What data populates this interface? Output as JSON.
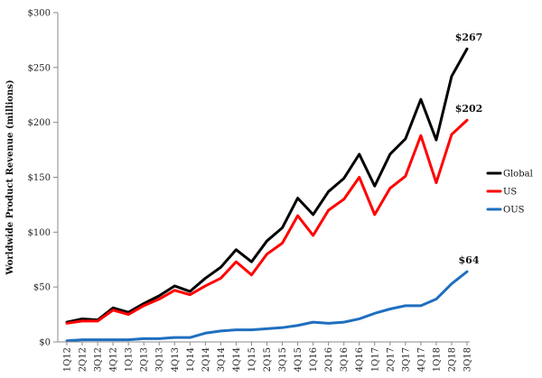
{
  "chart_data": {
    "type": "line",
    "title": "",
    "xlabel": "",
    "ylabel": "Worldwide Product Revenue (millions)",
    "ylim": [
      0,
      300
    ],
    "y_ticks": [
      0,
      50,
      100,
      150,
      200,
      250,
      300
    ],
    "y_tick_labels": [
      "$0",
      "$50",
      "$100",
      "$150",
      "$200",
      "$250",
      "$300"
    ],
    "grid": false,
    "legend_position": "right",
    "categories": [
      "1Q12",
      "2Q12",
      "3Q12",
      "4Q12",
      "1Q13",
      "2Q13",
      "3Q13",
      "4Q13",
      "1Q14",
      "2Q14",
      "3Q14",
      "4Q14",
      "1Q15",
      "2Q15",
      "3Q15",
      "4Q15",
      "1Q16",
      "2Q16",
      "3Q16",
      "4Q16",
      "1Q17",
      "2Q17",
      "3Q17",
      "4Q17",
      "1Q18",
      "2Q18",
      "3Q18"
    ],
    "series": [
      {
        "name": "Global",
        "color": "#000000",
        "values": [
          18,
          21,
          20,
          31,
          27,
          35,
          42,
          51,
          46,
          58,
          68,
          84,
          73,
          92,
          104,
          131,
          116,
          137,
          149,
          171,
          142,
          171,
          185,
          221,
          184,
          242,
          267
        ]
      },
      {
        "name": "US",
        "color": "#ff0000",
        "values": [
          17,
          19,
          19,
          29,
          25,
          33,
          39,
          47,
          43,
          51,
          58,
          73,
          61,
          80,
          90,
          115,
          97,
          120,
          130,
          150,
          116,
          140,
          151,
          188,
          145,
          189,
          202
        ]
      },
      {
        "name": "OUS",
        "color": "#1f6fbf",
        "values": [
          1,
          2,
          2,
          2,
          2,
          3,
          3,
          4,
          4,
          8,
          10,
          11,
          11,
          12,
          13,
          15,
          18,
          17,
          18,
          21,
          26,
          30,
          33,
          33,
          39,
          53,
          64
        ]
      }
    ],
    "annotations": [
      {
        "series": "Global",
        "label": "$267"
      },
      {
        "series": "US",
        "label": "$202"
      },
      {
        "series": "OUS",
        "label": "$64"
      }
    ]
  }
}
